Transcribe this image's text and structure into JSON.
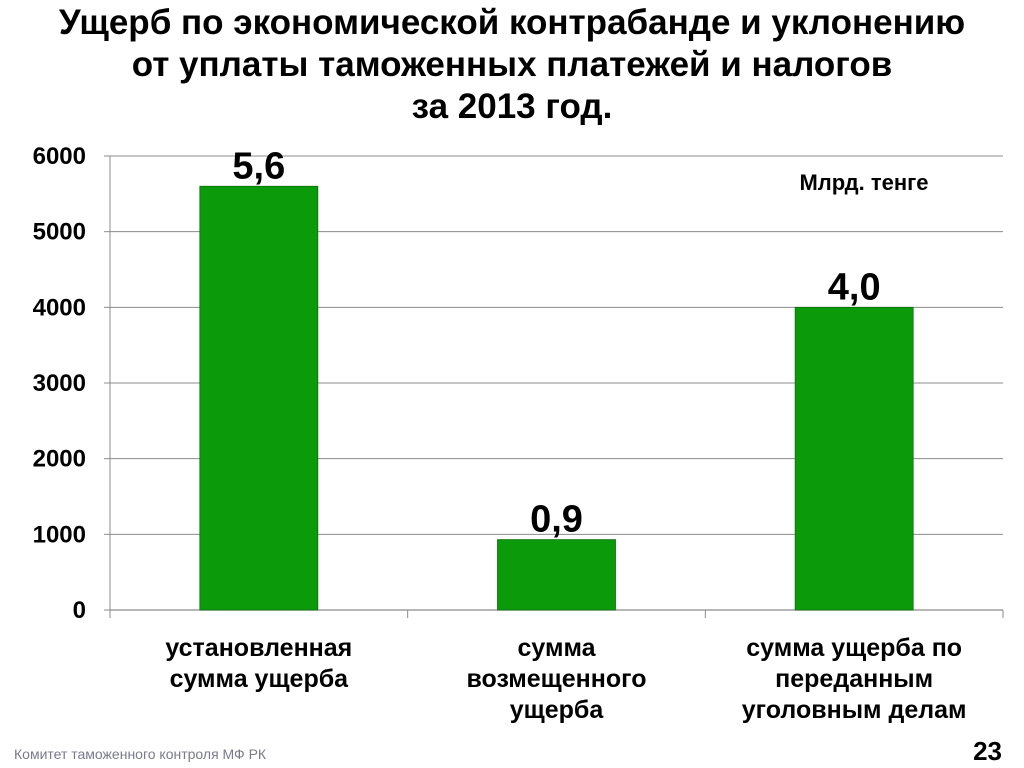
{
  "slide": {
    "title_lines": [
      "Ущерб по экономической контрабанде и уклонению",
      "от уплаты таможенных платежей и налогов",
      "за 2013 год."
    ],
    "footer": "Комитет таможенного контроля МФ РК",
    "page_number": "23"
  },
  "chart_data": {
    "type": "bar",
    "unit_label": "Млрд. тенге",
    "categories": [
      [
        "установленная",
        "сумма ущерба"
      ],
      [
        "сумма",
        "возмещенного",
        "ущерба"
      ],
      [
        "сумма ущерба по",
        "переданным",
        "уголовным делам"
      ]
    ],
    "values": [
      5600,
      930,
      4000
    ],
    "data_labels": [
      "5,6",
      "0,9",
      "4,0"
    ],
    "ylim": [
      0,
      6000
    ],
    "yticks": [
      0,
      1000,
      2000,
      3000,
      4000,
      5000,
      6000
    ],
    "grid": true,
    "bar_color": "#0a9a0a"
  }
}
